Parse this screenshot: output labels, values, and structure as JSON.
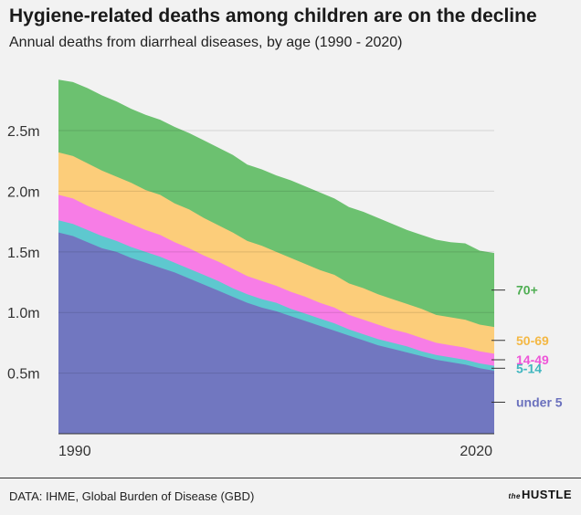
{
  "title": "Hygiene-related deaths among children are on the decline",
  "subtitle": "Annual deaths from diarrheal diseases, by age (1990 - 2020)",
  "source": "DATA: IHME, Global Burden of Disease (GBD)",
  "brand": {
    "prefix": "the",
    "name": "HUSTLE"
  },
  "chart_data": {
    "type": "area",
    "stacked": true,
    "x": [
      1990,
      1991,
      1992,
      1993,
      1994,
      1995,
      1996,
      1997,
      1998,
      1999,
      2000,
      2001,
      2002,
      2003,
      2004,
      2005,
      2006,
      2007,
      2008,
      2009,
      2010,
      2011,
      2012,
      2013,
      2014,
      2015,
      2016,
      2017,
      2018,
      2019,
      2020
    ],
    "xlim": [
      1990,
      2020
    ],
    "x_tick_labels": [
      "1990",
      "2020"
    ],
    "ylim": [
      0,
      3.05
    ],
    "y_ticks": [
      {
        "value": 0.5,
        "label": "0.5m"
      },
      {
        "value": 1.0,
        "label": "1.0m"
      },
      {
        "value": 1.5,
        "label": "1.5m"
      },
      {
        "value": 2.0,
        "label": "2.0m"
      },
      {
        "value": 2.5,
        "label": "2.5m"
      }
    ],
    "grid": true,
    "legend": "direct labels at right",
    "series": [
      {
        "name": "under 5",
        "color": "#7177c0",
        "values": [
          1.66,
          1.63,
          1.58,
          1.53,
          1.5,
          1.45,
          1.41,
          1.37,
          1.33,
          1.28,
          1.23,
          1.18,
          1.13,
          1.08,
          1.04,
          1.01,
          0.97,
          0.93,
          0.89,
          0.85,
          0.81,
          0.77,
          0.73,
          0.7,
          0.67,
          0.64,
          0.61,
          0.59,
          0.57,
          0.54,
          0.52
        ]
      },
      {
        "name": "5-14",
        "color": "#5ec8cf",
        "values": [
          0.1,
          0.1,
          0.1,
          0.1,
          0.09,
          0.09,
          0.09,
          0.09,
          0.08,
          0.08,
          0.08,
          0.08,
          0.07,
          0.07,
          0.07,
          0.07,
          0.06,
          0.06,
          0.06,
          0.06,
          0.05,
          0.05,
          0.05,
          0.05,
          0.05,
          0.04,
          0.04,
          0.04,
          0.04,
          0.04,
          0.04
        ]
      },
      {
        "name": "14-49",
        "color": "#f77de6",
        "values": [
          0.21,
          0.21,
          0.2,
          0.2,
          0.19,
          0.19,
          0.18,
          0.18,
          0.17,
          0.17,
          0.16,
          0.16,
          0.16,
          0.15,
          0.15,
          0.14,
          0.14,
          0.14,
          0.13,
          0.13,
          0.12,
          0.12,
          0.12,
          0.11,
          0.11,
          0.11,
          0.1,
          0.1,
          0.1,
          0.1,
          0.1
        ]
      },
      {
        "name": "50-69",
        "color": "#fccd7a",
        "values": [
          0.35,
          0.35,
          0.35,
          0.34,
          0.34,
          0.34,
          0.33,
          0.33,
          0.32,
          0.32,
          0.31,
          0.3,
          0.3,
          0.29,
          0.29,
          0.28,
          0.28,
          0.27,
          0.27,
          0.27,
          0.26,
          0.26,
          0.25,
          0.25,
          0.24,
          0.24,
          0.23,
          0.23,
          0.23,
          0.22,
          0.22
        ]
      },
      {
        "name": "70+",
        "color": "#6cc170",
        "values": [
          0.6,
          0.61,
          0.62,
          0.62,
          0.62,
          0.61,
          0.62,
          0.62,
          0.63,
          0.63,
          0.64,
          0.64,
          0.64,
          0.63,
          0.63,
          0.63,
          0.64,
          0.64,
          0.64,
          0.63,
          0.63,
          0.63,
          0.63,
          0.62,
          0.61,
          0.61,
          0.62,
          0.62,
          0.63,
          0.61,
          0.61
        ]
      }
    ]
  }
}
